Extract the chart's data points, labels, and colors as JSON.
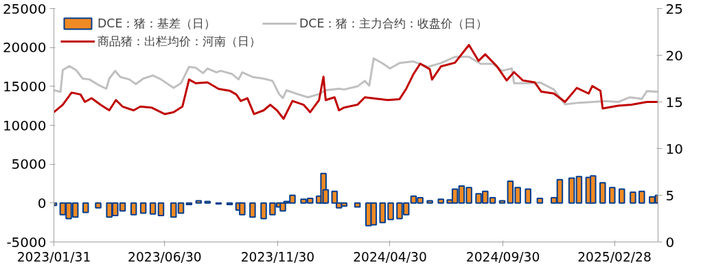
{
  "chart_data": {
    "type": "line",
    "legend": "top",
    "grid": false,
    "xlim": [
      "2023-01-31",
      "2025-04-28"
    ],
    "xticks": [
      {
        "value": "2023-01-31",
        "label": "2023/01/31"
      },
      {
        "value": "2023-06-30",
        "label": "2023/06/30"
      },
      {
        "value": "2023-11-30",
        "label": "2023/11/30"
      },
      {
        "value": "2024-04-30",
        "label": "2024/04/30"
      },
      {
        "value": "2024-09-30",
        "label": "2024/09/30"
      },
      {
        "value": "2025-02-28",
        "label": "2025/02/28"
      }
    ],
    "ylim": [
      -5000,
      25000
    ],
    "yticks": [
      -5000,
      0,
      5000,
      10000,
      15000,
      20000,
      25000
    ],
    "y2lim": [
      0,
      25
    ],
    "y2ticks": [
      0,
      5,
      10,
      15,
      20,
      25
    ],
    "series": [
      {
        "name": "DCE：猪：基差（日）",
        "type": "bar",
        "color": "#f08a24",
        "x": [
          "2023-01-31",
          "2023-02-12",
          "2023-02-20",
          "2023-03-01",
          "2023-03-15",
          "2023-04-01",
          "2023-04-16",
          "2023-04-24",
          "2023-05-04",
          "2023-05-19",
          "2023-06-01",
          "2023-06-14",
          "2023-06-25",
          "2023-07-12",
          "2023-07-22",
          "2023-08-02",
          "2023-08-15",
          "2023-08-27",
          "2023-09-11",
          "2023-09-26",
          "2023-10-08",
          "2023-10-13",
          "2023-10-27",
          "2023-11-11",
          "2023-11-23",
          "2023-12-02",
          "2023-12-07",
          "2023-12-12",
          "2023-12-20",
          "2024-01-04",
          "2024-01-13",
          "2024-01-25",
          "2024-01-31",
          "2024-02-03",
          "2024-02-15",
          "2024-02-21",
          "2024-02-28",
          "2024-03-17",
          "2024-04-01",
          "2024-04-08",
          "2024-04-20",
          "2024-05-01",
          "2024-05-13",
          "2024-05-22",
          "2024-06-01",
          "2024-06-10",
          "2024-06-23",
          "2024-07-08",
          "2024-07-20",
          "2024-07-27",
          "2024-08-05",
          "2024-08-15",
          "2024-08-28",
          "2024-09-06",
          "2024-09-16",
          "2024-09-29",
          "2024-10-10",
          "2024-10-20",
          "2024-11-03",
          "2024-11-19",
          "2024-12-08",
          "2024-12-16",
          "2025-01-01",
          "2025-01-11",
          "2025-01-24",
          "2025-01-30",
          "2025-02-12",
          "2025-02-25",
          "2025-03-10",
          "2025-03-25",
          "2025-04-06",
          "2025-04-20",
          "2025-04-28"
        ],
        "values": [
          -300,
          -1500,
          -2000,
          -1800,
          -1200,
          -600,
          -1800,
          -1600,
          -1000,
          -1500,
          -1300,
          -1400,
          -1600,
          -1800,
          -1300,
          -200,
          300,
          200,
          -100,
          -200,
          -900,
          -1500,
          -1800,
          -2000,
          -1500,
          -500,
          -1000,
          200,
          1000,
          500,
          600,
          900,
          3800,
          1700,
          1500,
          -600,
          -400,
          -500,
          -2900,
          -2800,
          -2500,
          -2100,
          -2000,
          -1500,
          900,
          700,
          300,
          500,
          400,
          1800,
          2200,
          2000,
          1200,
          1500,
          700,
          300,
          2800,
          2000,
          1800,
          600,
          700,
          3000,
          3200,
          3400,
          3300,
          3500,
          2600,
          2000,
          1800,
          1400,
          1500,
          800,
          1000
        ]
      },
      {
        "name": "DCE：猪：主力合约：收盘价（日）",
        "color": "#c0c0c0",
        "x": [
          "2023-01-31",
          "2023-02-09",
          "2023-02-12",
          "2023-02-21",
          "2023-03-02",
          "2023-03-11",
          "2023-03-20",
          "2023-04-01",
          "2023-04-12",
          "2023-04-16",
          "2023-04-24",
          "2023-05-01",
          "2023-05-13",
          "2023-05-22",
          "2023-06-01",
          "2023-06-14",
          "2023-06-25",
          "2023-07-12",
          "2023-07-22",
          "2023-08-02",
          "2023-08-11",
          "2023-08-21",
          "2023-08-27",
          "2023-09-08",
          "2023-09-14",
          "2023-09-29",
          "2023-10-08",
          "2023-10-13",
          "2023-10-27",
          "2023-11-11",
          "2023-11-23",
          "2023-12-02",
          "2023-12-07",
          "2023-12-12",
          "2023-12-27",
          "2024-01-10",
          "2024-01-25",
          "2024-02-03",
          "2024-02-21",
          "2024-02-28",
          "2024-03-17",
          "2024-03-27",
          "2024-04-02",
          "2024-04-08",
          "2024-04-21",
          "2024-04-30",
          "2024-05-13",
          "2024-06-01",
          "2024-06-20",
          "2024-07-08",
          "2024-07-27",
          "2024-08-15",
          "2024-08-31",
          "2024-09-16",
          "2024-09-29",
          "2024-10-12",
          "2024-10-15",
          "2024-11-03",
          "2024-11-19",
          "2024-12-08",
          "2024-12-23",
          "2025-01-11",
          "2025-01-30",
          "2025-02-15",
          "2025-03-05",
          "2025-03-21",
          "2025-04-06",
          "2025-04-13",
          "2025-04-28"
        ],
        "values": [
          14500,
          14300,
          17100,
          17600,
          17100,
          16000,
          15900,
          15200,
          14700,
          16000,
          17000,
          16200,
          15900,
          15300,
          16000,
          16400,
          15900,
          14800,
          15400,
          17500,
          17400,
          16700,
          17300,
          16800,
          17000,
          16600,
          15900,
          16800,
          16200,
          16000,
          15700,
          14000,
          13500,
          14500,
          14000,
          13600,
          14000,
          14500,
          14700,
          14600,
          15000,
          15700,
          15100,
          18600,
          17900,
          17300,
          18000,
          18200,
          17500,
          18000,
          18800,
          18800,
          17900,
          17900,
          17000,
          17300,
          15400,
          15400,
          15500,
          14600,
          12700,
          12900,
          13000,
          13100,
          13000,
          13600,
          13400,
          14400,
          14300
        ]
      },
      {
        "name": "商品猪：出栏均价：河南（日）",
        "color": "#c00000",
        "axis": "y2",
        "x": [
          "2023-01-31",
          "2023-02-12",
          "2023-02-24",
          "2023-03-08",
          "2023-03-14",
          "2023-03-23",
          "2023-04-04",
          "2023-04-16",
          "2023-04-25",
          "2023-05-04",
          "2023-05-19",
          "2023-05-28",
          "2023-06-12",
          "2023-06-30",
          "2023-07-12",
          "2023-07-24",
          "2023-08-02",
          "2023-08-11",
          "2023-08-27",
          "2023-09-11",
          "2023-09-26",
          "2023-10-05",
          "2023-10-11",
          "2023-10-20",
          "2023-10-29",
          "2023-11-11",
          "2023-11-20",
          "2023-11-29",
          "2023-12-08",
          "2023-12-20",
          "2024-01-04",
          "2024-01-13",
          "2024-01-25",
          "2024-01-31",
          "2024-02-03",
          "2024-02-15",
          "2024-02-21",
          "2024-02-28",
          "2024-03-17",
          "2024-03-27",
          "2024-04-27",
          "2024-05-13",
          "2024-05-22",
          "2024-06-01",
          "2024-06-10",
          "2024-06-23",
          "2024-06-26",
          "2024-07-08",
          "2024-07-27",
          "2024-08-15",
          "2024-08-28",
          "2024-09-06",
          "2024-09-22",
          "2024-10-05",
          "2024-10-15",
          "2024-10-27",
          "2024-11-12",
          "2024-11-21",
          "2024-12-08",
          "2024-12-23",
          "2025-01-08",
          "2025-01-24",
          "2025-01-29",
          "2025-02-09",
          "2025-02-12",
          "2025-03-05",
          "2025-03-23",
          "2025-04-13",
          "2025-04-28"
        ],
        "values": [
          13.9,
          14.7,
          16.0,
          15.8,
          15.0,
          15.4,
          14.7,
          14.1,
          15.2,
          14.5,
          14.1,
          14.5,
          14.4,
          13.7,
          13.9,
          14.5,
          17.4,
          17.0,
          17.1,
          16.4,
          16.2,
          15.8,
          15.1,
          15.4,
          13.7,
          14.1,
          14.7,
          14.1,
          13.2,
          15.1,
          14.7,
          13.9,
          15.2,
          17.7,
          15.2,
          15.5,
          14.1,
          14.4,
          14.7,
          15.5,
          15.2,
          15.3,
          16.4,
          18.0,
          19.1,
          18.5,
          17.4,
          18.8,
          19.2,
          21.1,
          19.4,
          20.1,
          18.8,
          17.3,
          18.2,
          17.3,
          17.1,
          16.1,
          15.9,
          15.0,
          16.5,
          15.9,
          16.7,
          16.2,
          14.3,
          14.6,
          14.7,
          15.0,
          15.0
        ]
      }
    ]
  }
}
